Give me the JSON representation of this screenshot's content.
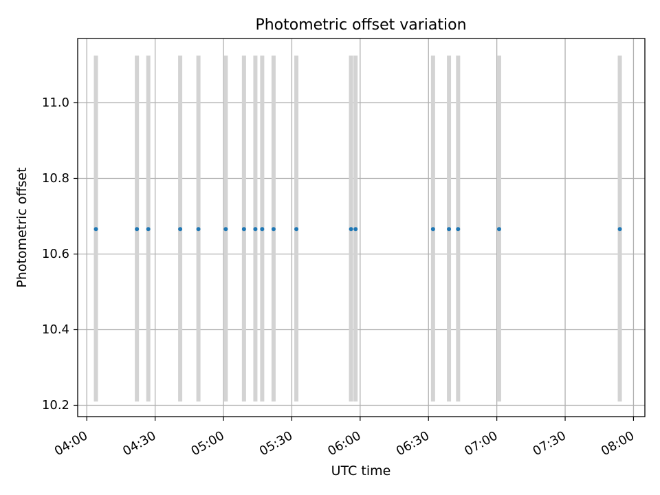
{
  "chart_data": {
    "type": "scatter",
    "title": "Photometric offset variation",
    "xlabel": "UTC time",
    "ylabel": "Photometric offset",
    "x_axis_type": "time",
    "xlim": [
      "03:56",
      "08:05"
    ],
    "ylim": [
      10.17,
      11.17
    ],
    "x_ticks": [
      "04:00",
      "04:30",
      "05:00",
      "05:30",
      "06:00",
      "06:30",
      "07:00",
      "07:30",
      "08:00"
    ],
    "y_ticks": [
      "10.2",
      "10.4",
      "10.6",
      "10.8",
      "11.0"
    ],
    "grid": true,
    "series": [
      {
        "marker_color": "#1f77b4",
        "points": [
          {
            "x": "04:04",
            "y": 10.666
          },
          {
            "x": "04:22",
            "y": 10.666
          },
          {
            "x": "04:27",
            "y": 10.666
          },
          {
            "x": "04:41",
            "y": 10.666
          },
          {
            "x": "04:49",
            "y": 10.666
          },
          {
            "x": "05:01",
            "y": 10.666
          },
          {
            "x": "05:09",
            "y": 10.666
          },
          {
            "x": "05:14",
            "y": 10.666
          },
          {
            "x": "05:17",
            "y": 10.666
          },
          {
            "x": "05:22",
            "y": 10.666
          },
          {
            "x": "05:32",
            "y": 10.666
          },
          {
            "x": "05:56",
            "y": 10.666
          },
          {
            "x": "05:58",
            "y": 10.666
          },
          {
            "x": "06:32",
            "y": 10.666
          },
          {
            "x": "06:39",
            "y": 10.666
          },
          {
            "x": "06:43",
            "y": 10.666
          },
          {
            "x": "07:01",
            "y": 10.666
          },
          {
            "x": "07:54",
            "y": 10.666
          }
        ]
      }
    ],
    "vertical_bands": {
      "color": "#d3d3d3",
      "y_range": [
        10.21,
        11.125
      ]
    }
  }
}
